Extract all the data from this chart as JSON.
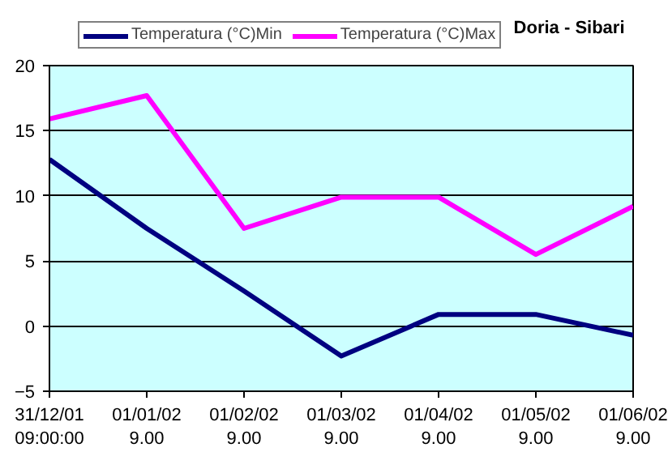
{
  "chart_data": {
    "type": "line",
    "title": "Doria - Sibari",
    "categories": [
      "31/12/01\n09:00:00",
      "01/01/02\n9.00",
      "01/02/02\n9.00",
      "01/03/02\n9.00",
      "01/04/02\n9.00",
      "01/05/02\n9.00",
      "01/06/02\n9.00"
    ],
    "series": [
      {
        "name": "Temperatura (°C)Min",
        "color": "#000080",
        "values": [
          12.8,
          7.5,
          2.7,
          -2.3,
          0.9,
          0.9,
          -0.7
        ]
      },
      {
        "name": "Temperatura (°C)Max",
        "color": "#ff00ff",
        "values": [
          15.9,
          17.7,
          7.5,
          9.9,
          9.9,
          5.5,
          9.2
        ]
      }
    ],
    "ylim": [
      -5,
      20
    ],
    "yticks": [
      -5,
      0,
      5,
      10,
      15,
      20
    ],
    "grid": "y",
    "legend": "top",
    "marker": "none",
    "line_style": "solid"
  }
}
